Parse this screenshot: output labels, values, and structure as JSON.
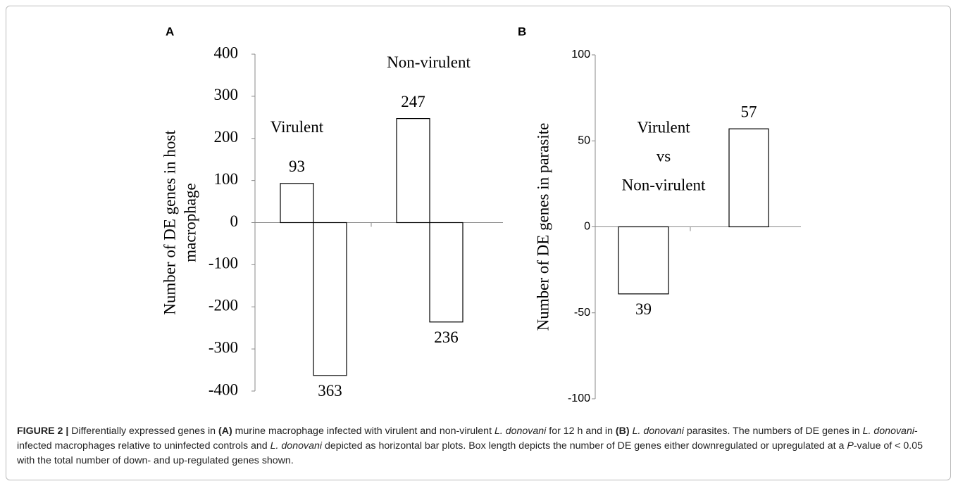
{
  "chart_data": [
    {
      "type": "grouped-bar",
      "panel": "A",
      "ylabel": [
        "Number of DE genes in host",
        "macrophage"
      ],
      "categories": [
        "Virulent",
        "Non-virulent"
      ],
      "series": [
        {
          "color": "#ffffff",
          "values": [
            93,
            247
          ],
          "value_labels": [
            "93",
            "247"
          ]
        },
        {
          "color": "#ffffff",
          "values": [
            -363,
            -236
          ],
          "value_labels": [
            "363",
            "236"
          ]
        }
      ],
      "ylim": [
        -400,
        400
      ],
      "yticks": [
        -400,
        -300,
        -200,
        -100,
        0,
        100,
        200,
        300,
        400
      ]
    },
    {
      "type": "bar",
      "panel": "B",
      "ylabel": [
        "Number of DE genes in parasite"
      ],
      "annotation": [
        "Virulent",
        "vs",
        "Non-virulent"
      ],
      "categories": [
        null,
        null
      ],
      "values": [
        -39,
        57
      ],
      "value_labels": [
        "39",
        "57"
      ],
      "color": "#ffffff",
      "ylim": [
        -100,
        100
      ],
      "yticks": [
        -100,
        -50,
        0,
        50,
        100
      ]
    }
  ],
  "caption": [
    "FIGURE 2 |",
    " Differentially expressed genes in ",
    "(A)",
    " murine macrophage infected with virulent and non-virulent ",
    "L.  donovani",
    " for 12 h and in ",
    "(B)",
    "L. donovani",
    " parasites. The numbers of DE genes in ",
    "L. donovani",
    "-infected macrophages relative to uninfected controls and ",
    "L. donovani",
    " depicted as horizontal bar plots. Box length depicts the number of DE genes either downregulated or upregulated at a ",
    "P",
    "-value of < 0.05 with the total number of down- and up-regulated genes shown."
  ]
}
